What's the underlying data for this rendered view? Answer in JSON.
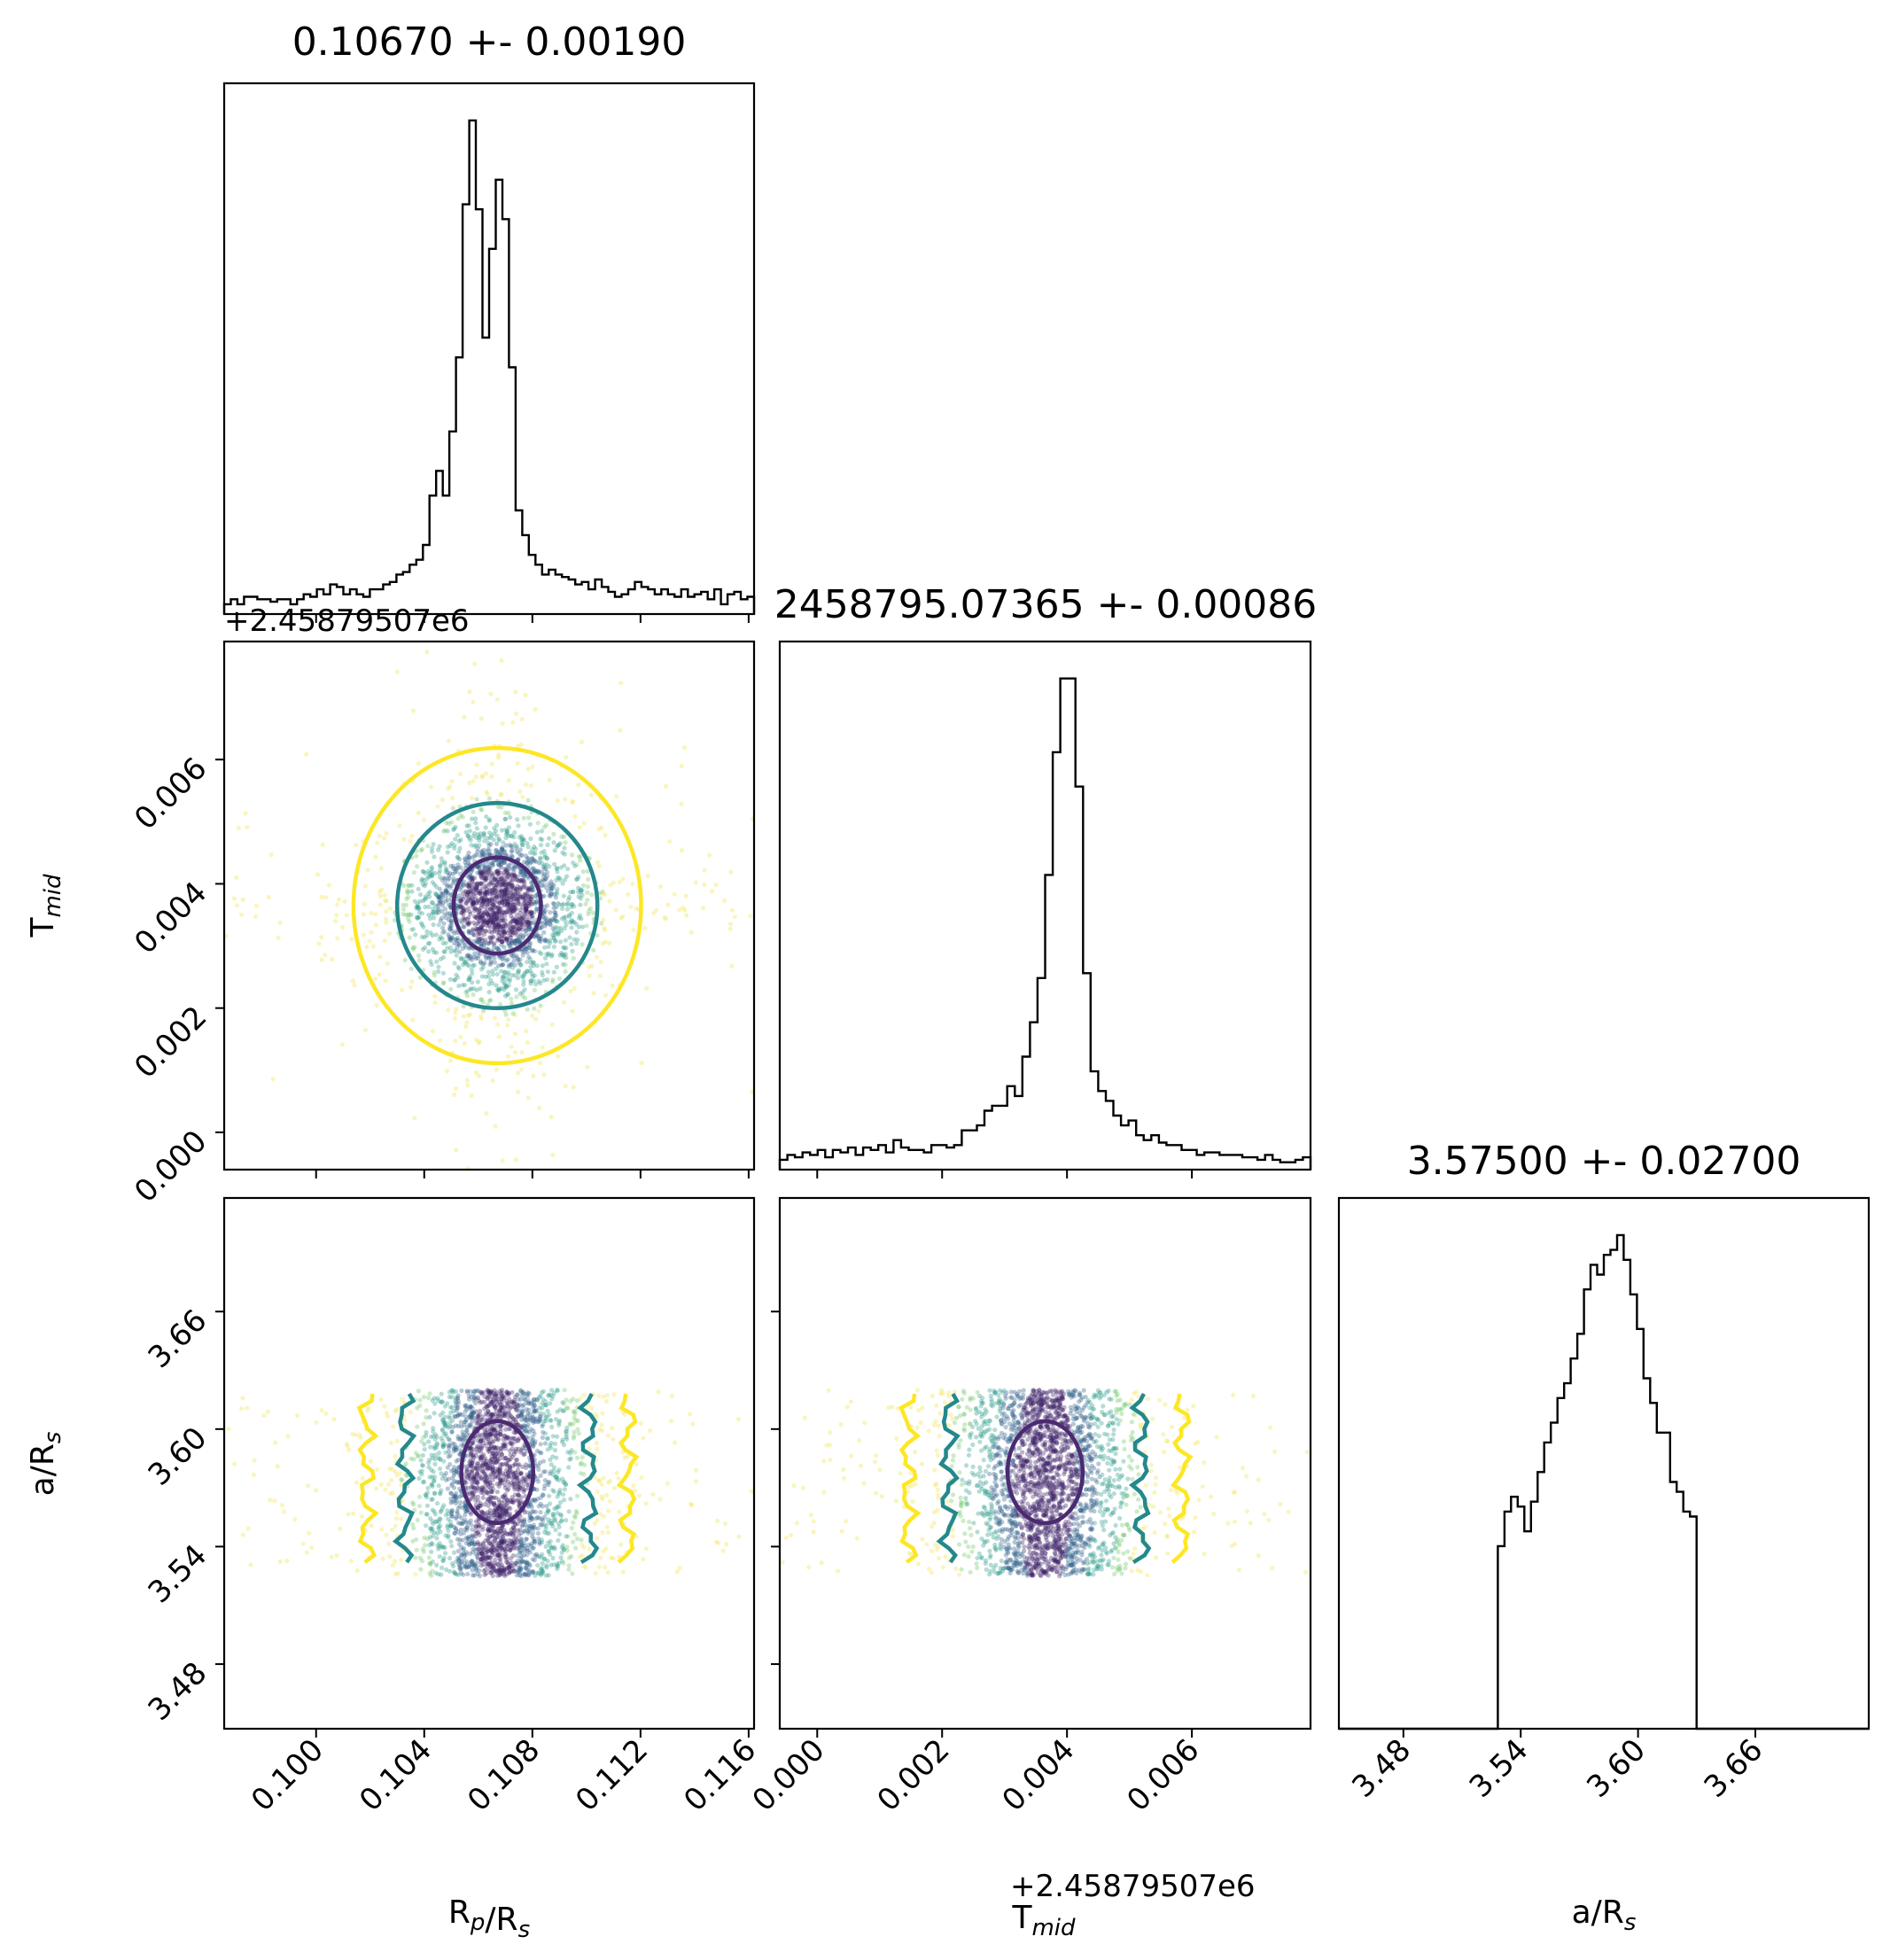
{
  "chart_data": {
    "type": "corner",
    "parameters": [
      {
        "key": "rp",
        "label_main": "R",
        "label_sub1": "p",
        "label_mid": "/R",
        "label_sub2": "s",
        "range": [
          0.0966,
          0.1162
        ],
        "ticks": [
          0.1,
          0.104,
          0.108,
          0.112,
          0.116
        ],
        "tick_labels": [
          "0.100",
          "0.104",
          "0.108",
          "0.112",
          "0.116"
        ],
        "mean": 0.1067,
        "std": 0.0019
      },
      {
        "key": "tmid",
        "label_main": "T",
        "label_sub1": "mid",
        "label_mid": "",
        "label_sub2": "",
        "range": [
          -0.0006,
          0.0079
        ],
        "ticks": [
          0.0,
          0.002,
          0.004,
          0.006
        ],
        "tick_labels": [
          "0.000",
          "0.002",
          "0.004",
          "0.006"
        ],
        "offset_label": "+2.45879507e6",
        "mean": 0.00365,
        "std": 0.00086
      },
      {
        "key": "ars",
        "label_main": "a/R",
        "label_sub1": "",
        "label_mid": "",
        "label_sub2": "s",
        "range": [
          3.447,
          3.718
        ],
        "ticks": [
          3.48,
          3.54,
          3.6,
          3.66
        ],
        "tick_labels": [
          "3.48",
          "3.54",
          "3.60",
          "3.66"
        ],
        "mean": 3.575,
        "std": 0.027,
        "prior_range": [
          3.525,
          3.62
        ]
      }
    ],
    "titles": [
      "0.10670 +- 0.00190",
      "2458795.07365 +- 0.00086",
      "3.57500 +- 0.02700"
    ],
    "histograms": {
      "rp": [
        0.02,
        0.03,
        0.02,
        0.035,
        0.035,
        0.03,
        0.03,
        0.025,
        0.03,
        0.03,
        0.02,
        0.03,
        0.04,
        0.035,
        0.05,
        0.04,
        0.06,
        0.055,
        0.04,
        0.05,
        0.04,
        0.035,
        0.05,
        0.05,
        0.06,
        0.065,
        0.08,
        0.085,
        0.1,
        0.11,
        0.14,
        0.24,
        0.29,
        0.24,
        0.37,
        0.52,
        0.83,
        1.0,
        0.82,
        0.56,
        0.74,
        0.88,
        0.8,
        0.5,
        0.21,
        0.16,
        0.12,
        0.1,
        0.08,
        0.09,
        0.08,
        0.075,
        0.07,
        0.06,
        0.065,
        0.05,
        0.07,
        0.055,
        0.045,
        0.035,
        0.04,
        0.05,
        0.065,
        0.055,
        0.05,
        0.04,
        0.05,
        0.04,
        0.035,
        0.05,
        0.035,
        0.04,
        0.045,
        0.03,
        0.05,
        0.02,
        0.04,
        0.045,
        0.03,
        0.035
      ],
      "tmid": [
        0.02,
        0.03,
        0.025,
        0.035,
        0.03,
        0.04,
        0.025,
        0.04,
        0.035,
        0.045,
        0.03,
        0.045,
        0.04,
        0.05,
        0.035,
        0.06,
        0.045,
        0.04,
        0.04,
        0.035,
        0.05,
        0.05,
        0.045,
        0.05,
        0.08,
        0.08,
        0.09,
        0.12,
        0.13,
        0.13,
        0.17,
        0.15,
        0.23,
        0.3,
        0.39,
        0.6,
        0.85,
        1.0,
        1.0,
        0.78,
        0.4,
        0.2,
        0.16,
        0.14,
        0.11,
        0.09,
        0.1,
        0.07,
        0.06,
        0.07,
        0.055,
        0.05,
        0.05,
        0.04,
        0.04,
        0.03,
        0.035,
        0.035,
        0.03,
        0.03,
        0.03,
        0.025,
        0.025,
        0.02,
        0.03,
        0.02,
        0.015,
        0.015,
        0.02,
        0.025
      ],
      "ars": [
        0.0,
        0.0,
        0.0,
        0.0,
        0.0,
        0.0,
        0.0,
        0.0,
        0.0,
        0.0,
        0.0,
        0.0,
        0.0,
        0.0,
        0.0,
        0.0,
        0.0,
        0.0,
        0.0,
        0.0,
        0.0,
        0.0,
        0.0,
        0.0,
        0.37,
        0.44,
        0.47,
        0.45,
        0.4,
        0.46,
        0.52,
        0.58,
        0.62,
        0.67,
        0.7,
        0.75,
        0.8,
        0.89,
        0.94,
        0.92,
        0.96,
        0.97,
        1.0,
        0.95,
        0.88,
        0.81,
        0.71,
        0.66,
        0.6,
        0.6,
        0.5,
        0.48,
        0.44,
        0.43,
        0.0,
        0.0,
        0.0,
        0.0,
        0.0,
        0.0,
        0.0,
        0.0,
        0.0,
        0.0,
        0.0,
        0.0,
        0.0,
        0.0,
        0.0,
        0.0,
        0.0,
        0.0,
        0.0,
        0.0,
        0.0,
        0.0,
        0.0,
        0.0,
        0.0,
        0.0
      ]
    },
    "contour_levels": [
      "inner",
      "middle",
      "outer"
    ],
    "colors": {
      "inner": "#4b2a72",
      "middle": "#24888c",
      "outer": "#fde725",
      "points": [
        "#3b1f66",
        "#2d5f8a",
        "#2b9a8a",
        "#6cc568",
        "#f0e34a"
      ]
    }
  }
}
